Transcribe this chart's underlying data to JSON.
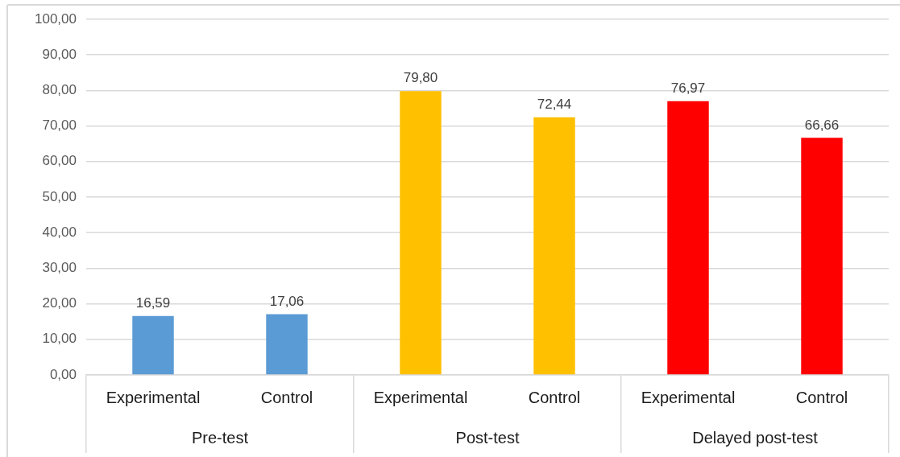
{
  "chart_data": {
    "type": "bar",
    "categories": [
      "Pre-test",
      "Post-test",
      "Delayed post-test"
    ],
    "series": [
      {
        "name": "Experimental",
        "colors": [
          "#5b9bd5",
          "#ffc000",
          "#ff0000"
        ],
        "values": [
          16.59,
          79.8,
          76.97
        ],
        "value_labels": [
          "16,59",
          "79,80",
          "76,97"
        ]
      },
      {
        "name": "Control",
        "colors": [
          "#5b9bd5",
          "#ffc000",
          "#ff0000"
        ],
        "values": [
          17.06,
          72.44,
          66.66
        ],
        "value_labels": [
          "17,06",
          "72,44",
          "66,66"
        ]
      }
    ],
    "ylim": [
      0,
      100
    ],
    "yticks": [
      {
        "value": 0,
        "label": "0,00"
      },
      {
        "value": 10,
        "label": "10,00"
      },
      {
        "value": 20,
        "label": "20,00"
      },
      {
        "value": 30,
        "label": "30,00"
      },
      {
        "value": 40,
        "label": "40,00"
      },
      {
        "value": 50,
        "label": "50,00"
      },
      {
        "value": 60,
        "label": "60,00"
      },
      {
        "value": 70,
        "label": "70,00"
      },
      {
        "value": 80,
        "label": "80,00"
      },
      {
        "value": 90,
        "label": "90,00"
      },
      {
        "value": 100,
        "label": "100,00"
      }
    ],
    "grid": "y",
    "legend": false
  }
}
